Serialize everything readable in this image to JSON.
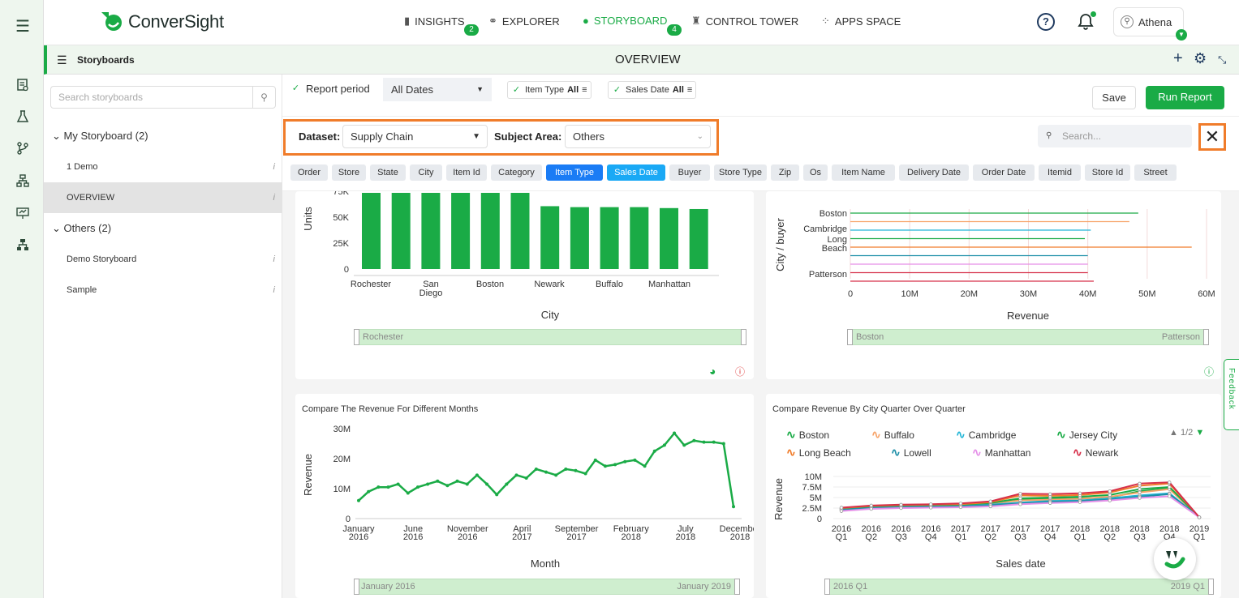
{
  "app": {
    "brand": "ConverSight"
  },
  "nav": [
    {
      "label": "INSIGHTS",
      "badge": "2"
    },
    {
      "label": "EXPLORER"
    },
    {
      "label": "STORYBOARD",
      "badge": "4"
    },
    {
      "label": "CONTROL TOWER"
    },
    {
      "label": "APPS SPACE"
    }
  ],
  "user": {
    "name": "Athena"
  },
  "subbar": {
    "label": "Storyboards",
    "title": "OVERVIEW"
  },
  "sidebar": {
    "search_placeholder": "Search storyboards",
    "groups": [
      {
        "label": "My Storyboard (2)",
        "items": [
          "1 Demo",
          "OVERVIEW"
        ]
      },
      {
        "label": "Others (2)",
        "items": [
          "Demo Storyboard",
          "Sample"
        ]
      }
    ],
    "info_glyph": "i"
  },
  "filters": {
    "report_period_label": "Report period",
    "report_period_value": "All Dates",
    "item_type_label": "Item Type",
    "item_type_value": "All",
    "sales_date_label": "Sales Date",
    "sales_date_value": "All",
    "save": "Save",
    "run": "Run Report"
  },
  "dataset": {
    "dataset_label": "Dataset:",
    "dataset_value": "Supply Chain",
    "subject_label": "Subject Area:",
    "subject_value": "Others",
    "search_placeholder": "Search..."
  },
  "chips": [
    "Order",
    "Store",
    "State",
    "City",
    "Item Id",
    "Category",
    "Item Type",
    "Sales Date",
    "Buyer",
    "Store Type",
    "Zip",
    "Os",
    "Item Name",
    "Delivery Date",
    "Order Date",
    "Itemid",
    "Store Id",
    "Street"
  ],
  "feedback": "Feedback",
  "colors": {
    "accent": "#1aab46",
    "highlight": "#f07c2a",
    "chip_active": "#1a7cf5"
  },
  "chart_data": [
    {
      "type": "bar",
      "title": "",
      "xlabel": "City",
      "ylabel": "Units",
      "yticks": [
        "0",
        "25K",
        "50K",
        "75K"
      ],
      "ylim": [
        0,
        80000
      ],
      "categories": [
        "Rochester",
        "",
        "San Diego",
        "",
        "Boston",
        "",
        "Newark",
        "",
        "Buffalo",
        "",
        "Manhattan",
        ""
      ],
      "x_tick_labels": [
        "Rochester",
        "San\nDiego",
        "Boston",
        "Newark",
        "Buffalo",
        "Manhattan"
      ],
      "values": [
        80000,
        80000,
        80000,
        80000,
        80000,
        80000,
        66000,
        65000,
        65000,
        65000,
        64000,
        63000
      ],
      "slider": {
        "start": "Rochester"
      }
    },
    {
      "type": "bar",
      "title": "",
      "xlabel": "Revenue",
      "ylabel": "City / buyer",
      "orientation": "horizontal",
      "xticks": [
        "0",
        "10M",
        "20M",
        "30M",
        "40M",
        "50M",
        "60M"
      ],
      "xlim": [
        0,
        60000000
      ],
      "categories": [
        "Boston",
        "",
        "Cambridge",
        "",
        "Long Beach",
        "",
        "",
        "",
        "Patterson"
      ],
      "y_tick_labels": [
        "Boston",
        "Cambridge",
        "Long",
        "Beach",
        "Patterson"
      ],
      "values": [
        48500000,
        47000000,
        40500000,
        39500000,
        57500000,
        40000000,
        40000000,
        40000000,
        41000000
      ],
      "slider": {
        "start": "Boston",
        "end": "Patterson"
      }
    },
    {
      "type": "line",
      "title": "Compare The Revenue For Different Months",
      "xlabel": "Month",
      "ylabel": "Revenue",
      "yticks": [
        "0",
        "10M",
        "20M",
        "30M"
      ],
      "ylim": [
        0,
        30000000
      ],
      "x_tick_labels": [
        [
          "January",
          "2016"
        ],
        [
          "June",
          "2016"
        ],
        [
          "November",
          "2016"
        ],
        [
          "April",
          "2017"
        ],
        [
          "September",
          "2017"
        ],
        [
          "February",
          "2018"
        ],
        [
          "July",
          "2018"
        ],
        [
          "December",
          "2018"
        ]
      ],
      "values": [
        6000000,
        9000000,
        10500000,
        10500000,
        11500000,
        8500000,
        10500000,
        11500000,
        12500000,
        11000000,
        12500000,
        11500000,
        14500000,
        11500000,
        8000000,
        11500000,
        14500000,
        13500000,
        16500000,
        15500000,
        14500000,
        16500000,
        16000000,
        15000000,
        19500000,
        17500000,
        18000000,
        19000000,
        19500000,
        17500000,
        22500000,
        24500000,
        28500000,
        24500000,
        26000000,
        25500000,
        25500000,
        25000000,
        4000000
      ],
      "slider": {
        "start": "January 2016",
        "end": "January 2019"
      }
    },
    {
      "type": "line",
      "title": "Compare Revenue By City Quarter Over Quarter",
      "xlabel": "Sales date",
      "ylabel": "Revenue",
      "yticks": [
        "0",
        "2.5M",
        "5M",
        "7.5M",
        "10M"
      ],
      "ylim": [
        0,
        10000000
      ],
      "x_tick_labels": [
        [
          "2016",
          "Q1"
        ],
        [
          "2016",
          "Q2"
        ],
        [
          "2016",
          "Q3"
        ],
        [
          "2016",
          "Q4"
        ],
        [
          "2017",
          "Q1"
        ],
        [
          "2017",
          "Q2"
        ],
        [
          "2017",
          "Q3"
        ],
        [
          "2017",
          "Q4"
        ],
        [
          "2018",
          "Q1"
        ],
        [
          "2018",
          "Q2"
        ],
        [
          "2018",
          "Q3"
        ],
        [
          "2018",
          "Q4"
        ],
        [
          "2019",
          "Q1"
        ]
      ],
      "legend_page": "1/2",
      "series": [
        {
          "name": "Boston",
          "color": "#1aab46",
          "values": [
            2200000,
            2800000,
            3000000,
            3000000,
            3200000,
            3500000,
            4500000,
            4700000,
            4800000,
            5000000,
            6500000,
            7200000,
            300000
          ]
        },
        {
          "name": "Buffalo",
          "color": "#f7a46a",
          "values": [
            2400000,
            2700000,
            2900000,
            3000000,
            3100000,
            3600000,
            4300000,
            4500000,
            4700000,
            5200000,
            6200000,
            7000000,
            300000
          ]
        },
        {
          "name": "Cambridge",
          "color": "#22b5d6",
          "values": [
            2000000,
            2600000,
            2800000,
            2900000,
            3000000,
            3300000,
            3800000,
            4200000,
            4300000,
            4800000,
            5500000,
            6000000,
            300000
          ]
        },
        {
          "name": "Jersey City",
          "color": "#1aab46",
          "values": [
            2300000,
            2900000,
            3100000,
            3200000,
            3300000,
            3700000,
            4800000,
            5000000,
            5200000,
            5600000,
            7000000,
            7500000,
            300000
          ]
        },
        {
          "name": "Long Beach",
          "color": "#f07c2a",
          "values": [
            2500000,
            3000000,
            3200000,
            3300000,
            3400000,
            3900000,
            5500000,
            5400000,
            5600000,
            6200000,
            7800000,
            8300000,
            300000
          ]
        },
        {
          "name": "Lowell",
          "color": "#1e8fa8",
          "values": [
            2100000,
            2500000,
            2700000,
            2800000,
            2900000,
            3200000,
            3600000,
            4000000,
            4200000,
            4500000,
            5200000,
            5800000,
            300000
          ]
        },
        {
          "name": "Manhattan",
          "color": "#e58fe8",
          "values": [
            1800000,
            2300000,
            2500000,
            2600000,
            2700000,
            2900000,
            3400000,
            3700000,
            3900000,
            4300000,
            4900000,
            5300000,
            300000
          ]
        },
        {
          "name": "Newark",
          "color": "#d6304a",
          "values": [
            2600000,
            3100000,
            3300000,
            3400000,
            3600000,
            4100000,
            5900000,
            5800000,
            6000000,
            6500000,
            8300000,
            8600000,
            300000
          ]
        }
      ],
      "slider": {
        "start": "2016 Q1",
        "end": "2019 Q1"
      }
    }
  ]
}
